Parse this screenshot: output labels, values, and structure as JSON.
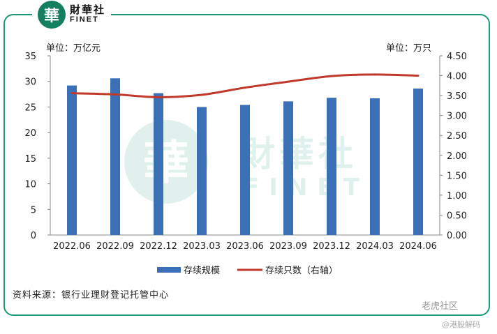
{
  "logo": {
    "mark": "華",
    "cn": "財華社",
    "en": "FINET"
  },
  "watermark": {
    "cn": "財華社",
    "en": "FINET"
  },
  "left_unit": "单位：万亿元",
  "right_unit": "单位：万只",
  "source": "资料来源：银行业理财登记托管中心",
  "tiger_brand": "老虎社区",
  "tiger_sub": "@港股解码",
  "colors": {
    "bar": "#3b6fb6",
    "line": "#c0392b",
    "frame": "#1a9a78"
  },
  "chart_data": {
    "type": "bar",
    "categories": [
      "2022.06",
      "2022.09",
      "2022.12",
      "2023.03",
      "2023.06",
      "2023.09",
      "2023.12",
      "2024.03",
      "2024.06"
    ],
    "series": [
      {
        "name": "存续规模",
        "type": "bar",
        "axis": "left",
        "values": [
          29.2,
          30.6,
          27.7,
          25.0,
          25.4,
          26.1,
          26.8,
          26.7,
          28.6
        ]
      },
      {
        "name": "存续只数（右轴）",
        "type": "line",
        "axis": "right",
        "values": [
          3.56,
          3.53,
          3.46,
          3.52,
          3.7,
          3.85,
          3.99,
          4.03,
          4.0
        ]
      }
    ],
    "left_axis": {
      "min": 0,
      "max": 35,
      "step": 5,
      "ticks": [
        "0",
        "5",
        "10",
        "15",
        "20",
        "25",
        "30",
        "35"
      ]
    },
    "right_axis": {
      "min": 0,
      "max": 4.5,
      "step": 0.5,
      "ticks": [
        "0.00",
        "0.50",
        "1.00",
        "1.50",
        "2.00",
        "2.50",
        "3.00",
        "3.50",
        "4.00",
        "4.50"
      ]
    },
    "legend_position": "bottom"
  }
}
